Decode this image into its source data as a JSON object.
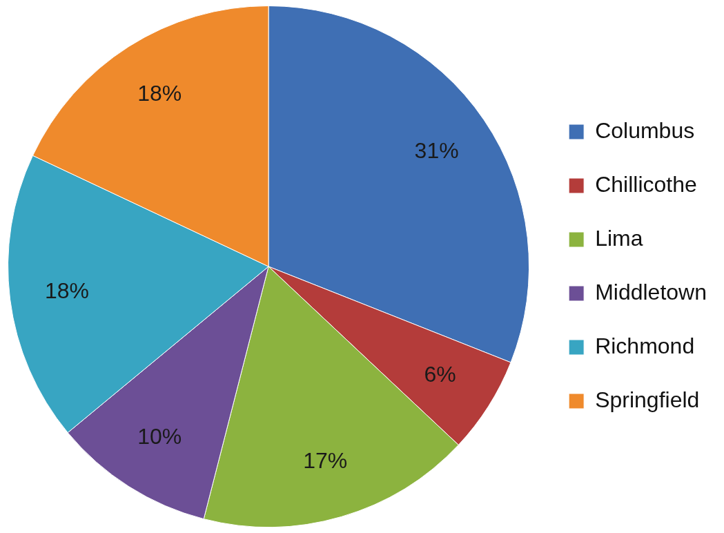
{
  "chart_data": {
    "type": "pie",
    "categories": [
      "Columbus",
      "Chillicothe",
      "Lima",
      "Middletown",
      "Richmond",
      "Springfield"
    ],
    "values": [
      31,
      6,
      17,
      10,
      18,
      18
    ],
    "colors": [
      "#3f6fb4",
      "#b43c3a",
      "#8cb33f",
      "#6c4f96",
      "#38a5c2",
      "#ef8a2c"
    ],
    "value_labels": [
      "31%",
      "6%",
      "17%",
      "10%",
      "18%",
      "18%"
    ],
    "legend": "right"
  }
}
